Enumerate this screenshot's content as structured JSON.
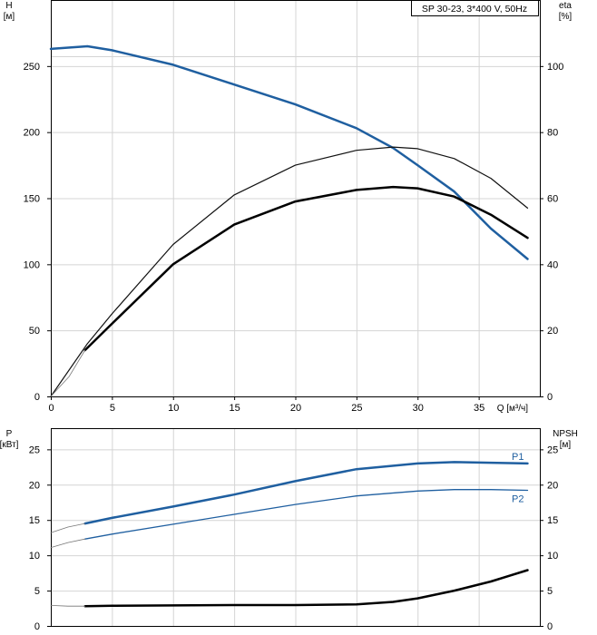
{
  "chart_data": [
    {
      "type": "line",
      "x": {
        "label": "Q [м³/ч]",
        "lim": [
          0,
          40
        ],
        "ticks": [
          0,
          5,
          10,
          15,
          20,
          25,
          30,
          35
        ]
      },
      "y": {
        "label": "H",
        "unit": "[м]",
        "lim": [
          0,
          300
        ],
        "ticks": [
          0,
          50,
          100,
          150,
          200,
          250
        ]
      },
      "y2": {
        "label": "eta",
        "unit": "[%]",
        "lim": [
          0,
          120
        ],
        "ticks": [
          0,
          20,
          40,
          60,
          80,
          100
        ]
      },
      "legend_text": "SP 30-23, 3*400 V, 50Hz",
      "grid": true,
      "series": [
        {
          "axis": "left",
          "color": "#1f5fa0",
          "width": 2.5,
          "points": [
            [
              0,
              263
            ],
            [
              3,
              265
            ],
            [
              5,
              262
            ],
            [
              10,
              251
            ],
            [
              15,
              236
            ],
            [
              20,
              221
            ],
            [
              25,
              203
            ],
            [
              28,
              188
            ],
            [
              30,
              175
            ],
            [
              33,
              155
            ],
            [
              36,
              127
            ],
            [
              39,
              104
            ]
          ]
        },
        {
          "axis": "right",
          "color": "#111111",
          "width": 1.2,
          "points": [
            [
              0,
              0
            ],
            [
              3,
              16
            ],
            [
              5,
              25
            ],
            [
              10,
              46
            ],
            [
              15,
              61
            ],
            [
              20,
              70
            ],
            [
              25,
              74.5
            ],
            [
              28,
              75.5
            ],
            [
              30,
              75
            ],
            [
              33,
              72
            ],
            [
              36,
              66
            ],
            [
              39,
              57
            ]
          ]
        },
        {
          "axis": "right",
          "color": "#000000",
          "width": 2.5,
          "points": [
            [
              2.8,
              14
            ],
            [
              5,
              22
            ],
            [
              10,
              40
            ],
            [
              15,
              52
            ],
            [
              20,
              59
            ],
            [
              25,
              62.5
            ],
            [
              28,
              63.4
            ],
            [
              30,
              63
            ],
            [
              33,
              60.5
            ],
            [
              36,
              55
            ],
            [
              39,
              48
            ]
          ]
        },
        {
          "axis": "right",
          "color": "#777777",
          "width": 0.8,
          "points": [
            [
              0,
              0
            ],
            [
              1.5,
              6
            ],
            [
              2.8,
              14
            ]
          ]
        }
      ]
    },
    {
      "type": "line",
      "x": {
        "lim": [
          0,
          40
        ]
      },
      "y": {
        "label": "P",
        "unit": "[кВт]",
        "lim": [
          0,
          28
        ],
        "ticks": [
          0,
          5,
          10,
          15,
          20,
          25
        ]
      },
      "y2": {
        "label": "NPSH",
        "unit": "[м]",
        "lim": [
          0,
          28
        ],
        "ticks": [
          0,
          5,
          10,
          15,
          20,
          25
        ]
      },
      "grid": true,
      "series": [
        {
          "name": "P1",
          "axis": "left",
          "color": "#1f5fa0",
          "width": 2.5,
          "points": [
            [
              2.8,
              14.5
            ],
            [
              5,
              15.3
            ],
            [
              10,
              16.9
            ],
            [
              15,
              18.6
            ],
            [
              20,
              20.5
            ],
            [
              25,
              22.2
            ],
            [
              30,
              23
            ],
            [
              33,
              23.2
            ],
            [
              36,
              23.1
            ],
            [
              39,
              23
            ]
          ]
        },
        {
          "name": "P2",
          "axis": "left",
          "color": "#1f5fa0",
          "width": 1.3,
          "points": [
            [
              2.8,
              12.3
            ],
            [
              5,
              13
            ],
            [
              10,
              14.4
            ],
            [
              15,
              15.8
            ],
            [
              20,
              17.2
            ],
            [
              25,
              18.4
            ],
            [
              30,
              19.1
            ],
            [
              33,
              19.3
            ],
            [
              36,
              19.3
            ],
            [
              39,
              19.2
            ]
          ]
        },
        {
          "axis": "right",
          "color": "#000000",
          "width": 2.5,
          "points": [
            [
              2.8,
              2.8
            ],
            [
              5,
              2.85
            ],
            [
              10,
              2.9
            ],
            [
              15,
              2.95
            ],
            [
              20,
              2.95
            ],
            [
              25,
              3.05
            ],
            [
              28,
              3.4
            ],
            [
              30,
              3.9
            ],
            [
              33,
              5
            ],
            [
              36,
              6.3
            ],
            [
              39,
              7.9
            ]
          ]
        },
        {
          "axis": "left",
          "color": "#777777",
          "width": 0.8,
          "points": [
            [
              0,
              13.2
            ],
            [
              1.4,
              14
            ],
            [
              2.8,
              14.5
            ]
          ]
        },
        {
          "axis": "left",
          "color": "#777777",
          "width": 0.8,
          "points": [
            [
              0,
              11.1
            ],
            [
              1.4,
              11.8
            ],
            [
              2.8,
              12.3
            ]
          ]
        },
        {
          "axis": "right",
          "color": "#777777",
          "width": 0.8,
          "points": [
            [
              0,
              2.9
            ],
            [
              1.4,
              2.8
            ],
            [
              2.8,
              2.8
            ]
          ]
        }
      ]
    }
  ]
}
